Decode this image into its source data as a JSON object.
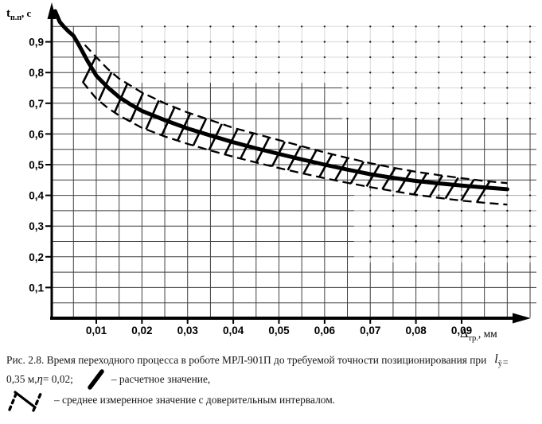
{
  "chart_data": {
    "type": "line",
    "title": "",
    "ylabel_parts": {
      "main": "t",
      "sub": "п.п",
      "unit": ", с"
    },
    "xlabel_parts": {
      "main": "Δ",
      "sub": "тр.",
      "unit": ", мм"
    },
    "xlim": [
      0,
      0.107
    ],
    "ylim": [
      0,
      1.0
    ],
    "x_ticks": [
      0.01,
      0.02,
      0.03,
      0.04,
      0.05,
      0.06,
      0.07,
      0.08,
      0.09
    ],
    "x_tick_labels": [
      "0,01",
      "0,02",
      "0,03",
      "0,04",
      "0,05",
      "0,06",
      "0,07",
      "0,08",
      "0,09"
    ],
    "y_ticks": [
      0.1,
      0.2,
      0.3,
      0.4,
      0.5,
      0.6,
      0.7,
      0.8,
      0.9
    ],
    "y_tick_labels": [
      "0,1",
      "0,2",
      "0,3",
      "0,4",
      "0,5",
      "0,6",
      "0,7",
      "0,8",
      "0,9"
    ],
    "x_grid_step": 0.005,
    "y_grid_step": 0.05,
    "grid": true,
    "legend_position": "below-caption",
    "band_hatched": true,
    "colors": {
      "ink": "#000000",
      "grid": "#3f3f3f"
    },
    "series": [
      {
        "name": "расчетное значение",
        "role": "calculated-curve",
        "line": "solid-thick",
        "x": [
          0.001,
          0.002,
          0.003,
          0.004,
          0.005,
          0.006,
          0.008,
          0.01,
          0.0125,
          0.015,
          0.0175,
          0.02,
          0.025,
          0.03,
          0.035,
          0.04,
          0.045,
          0.05,
          0.055,
          0.06,
          0.065,
          0.07,
          0.075,
          0.08,
          0.085,
          0.09,
          0.095,
          0.1
        ],
        "y": [
          1.0,
          0.965,
          0.948,
          0.933,
          0.92,
          0.895,
          0.84,
          0.79,
          0.752,
          0.72,
          0.696,
          0.675,
          0.645,
          0.618,
          0.595,
          0.573,
          0.553,
          0.535,
          0.517,
          0.5,
          0.484,
          0.469,
          0.457,
          0.447,
          0.439,
          0.432,
          0.426,
          0.42
        ]
      },
      {
        "name": "среднее измеренное значение — верхняя граница доверительного интервала",
        "role": "band-top",
        "line": "dashed",
        "x": [
          0.0075,
          0.01,
          0.0125,
          0.015,
          0.02,
          0.025,
          0.03,
          0.035,
          0.04,
          0.045,
          0.05,
          0.055,
          0.06,
          0.065,
          0.07,
          0.075,
          0.08,
          0.085,
          0.09,
          0.095,
          0.1
        ],
        "y": [
          0.89,
          0.85,
          0.812,
          0.78,
          0.735,
          0.7,
          0.67,
          0.645,
          0.62,
          0.6,
          0.58,
          0.56,
          0.54,
          0.522,
          0.505,
          0.49,
          0.477,
          0.466,
          0.456,
          0.447,
          0.44
        ]
      },
      {
        "name": "среднее измеренное значение — нижняя граница доверительного интервала",
        "role": "band-bottom",
        "line": "dashed",
        "x": [
          0.007,
          0.01,
          0.0125,
          0.015,
          0.02,
          0.025,
          0.03,
          0.035,
          0.04,
          0.045,
          0.05,
          0.055,
          0.06,
          0.065,
          0.07,
          0.075,
          0.08,
          0.085,
          0.09,
          0.095,
          0.1
        ],
        "y": [
          0.77,
          0.715,
          0.685,
          0.66,
          0.62,
          0.592,
          0.568,
          0.546,
          0.526,
          0.507,
          0.489,
          0.472,
          0.456,
          0.441,
          0.427,
          0.414,
          0.402,
          0.392,
          0.383,
          0.376,
          0.37
        ]
      }
    ]
  },
  "caption": {
    "line1": "Рис. 2.8. Время переходного процесса в роботе МРЛ-901П до требуемой точности позиционирования при",
    "formula": {
      "var": "l",
      "sub": "ӯ",
      "eq": "="
    },
    "line2_parts": [
      "0,35 м, ",
      "η",
      " = 0,02;"
    ],
    "legend": [
      {
        "symbol": "thick-stroke",
        "label": "– расчетное значение,"
      },
      {
        "symbol": "hatched-band",
        "label": "– среднее измеренное значение с доверительным интервалом."
      }
    ]
  }
}
